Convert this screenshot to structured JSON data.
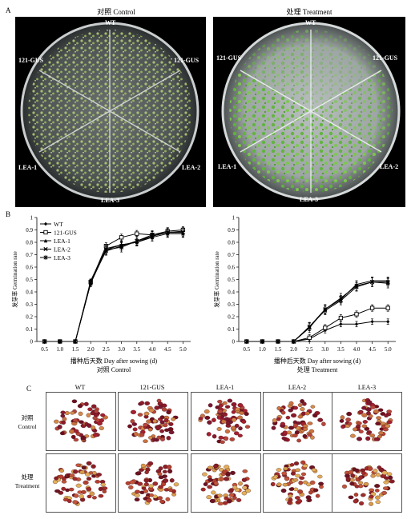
{
  "panel_a": {
    "letter": "A",
    "control_title": "对照 Control",
    "treatment_title": "处理 Treatment",
    "plate_labels": {
      "top": "WT",
      "upper_left": "121-GUS",
      "upper_right": "121-GUS",
      "lower_left": "LEA-1",
      "lower_right": "LEA-2",
      "bottom": "LEA-3"
    }
  },
  "panel_b": {
    "letter": "B"
  },
  "panel_c": {
    "letter": "C",
    "columns": [
      "WT",
      "121-GUS",
      "LEA-1",
      "LEA-2",
      "LEA-3"
    ],
    "row_control": [
      "对照",
      "Control"
    ],
    "row_treatment": [
      "处理",
      "Treatment"
    ]
  },
  "chart_data": [
    {
      "type": "line",
      "caption_line1": "播种后天数 Day after sowing (d)",
      "caption_line2": "对照 Control",
      "ylabel": "发芽率 Germination rate",
      "xticks": [
        "0.5",
        "1.0",
        "1.5",
        "2.0",
        "2.5",
        "3.0",
        "3.5",
        "4.0",
        "4.5",
        "5.0"
      ],
      "yticks": [
        "0",
        "0.1",
        "0.2",
        "0.3",
        "0.4",
        "0.5",
        "0.6",
        "0.7",
        "0.8",
        "0.9",
        "1"
      ],
      "ylim": [
        0,
        1
      ],
      "x": [
        0.5,
        1.0,
        1.5,
        2.0,
        2.5,
        3.0,
        3.5,
        4.0,
        4.5,
        5.0
      ],
      "legend_position": "top-left",
      "series": [
        {
          "name": "WT",
          "marker": "diamond",
          "values": [
            0,
            0,
            0,
            0.49,
            0.75,
            0.78,
            0.8,
            0.85,
            0.88,
            0.89
          ]
        },
        {
          "name": "121-GUS",
          "marker": "square",
          "values": [
            0,
            0,
            0,
            0.48,
            0.77,
            0.84,
            0.87,
            0.86,
            0.89,
            0.9
          ]
        },
        {
          "name": "LEA-1",
          "marker": "triangle",
          "values": [
            0,
            0,
            0,
            0.47,
            0.74,
            0.78,
            0.8,
            0.84,
            0.87,
            0.87
          ]
        },
        {
          "name": "LEA-2",
          "marker": "x",
          "values": [
            0,
            0,
            0,
            0.48,
            0.73,
            0.77,
            0.81,
            0.86,
            0.88,
            0.88
          ]
        },
        {
          "name": "LEA-3",
          "marker": "star",
          "values": [
            0,
            0,
            0,
            0.47,
            0.74,
            0.76,
            0.81,
            0.85,
            0.88,
            0.88
          ]
        }
      ]
    },
    {
      "type": "line",
      "caption_line1": "播种后天数 Day after sowing (d)",
      "caption_line2": "处理 Treatment",
      "ylabel": "发芽率 Germination rate",
      "xticks": [
        "0.5",
        "1.0",
        "1.5",
        "2.0",
        "2.5",
        "3.0",
        "3.5",
        "4.0",
        "4.5",
        "5.0"
      ],
      "yticks": [
        "0",
        "0.1",
        "0.2",
        "0.3",
        "0.4",
        "0.5",
        "0.6",
        "0.7",
        "0.8",
        "0.9",
        "1"
      ],
      "ylim": [
        0,
        1
      ],
      "x": [
        0.5,
        1.0,
        1.5,
        2.0,
        2.5,
        3.0,
        3.5,
        4.0,
        4.5,
        5.0
      ],
      "series": [
        {
          "marker": "diamond",
          "values": [
            0,
            0,
            0,
            0,
            0.02,
            0.09,
            0.14,
            0.14,
            0.16,
            0.16
          ]
        },
        {
          "marker": "square",
          "values": [
            0,
            0,
            0,
            0,
            0.03,
            0.11,
            0.19,
            0.22,
            0.27,
            0.27
          ]
        },
        {
          "marker": "triangle",
          "values": [
            0,
            0,
            0,
            0,
            0.12,
            0.26,
            0.34,
            0.46,
            0.49,
            0.49
          ]
        },
        {
          "marker": "x",
          "values": [
            0,
            0,
            0,
            0,
            0.12,
            0.25,
            0.33,
            0.44,
            0.48,
            0.48
          ]
        },
        {
          "marker": "star",
          "values": [
            0,
            0,
            0,
            0,
            0.11,
            0.26,
            0.35,
            0.45,
            0.48,
            0.47
          ]
        }
      ]
    }
  ]
}
